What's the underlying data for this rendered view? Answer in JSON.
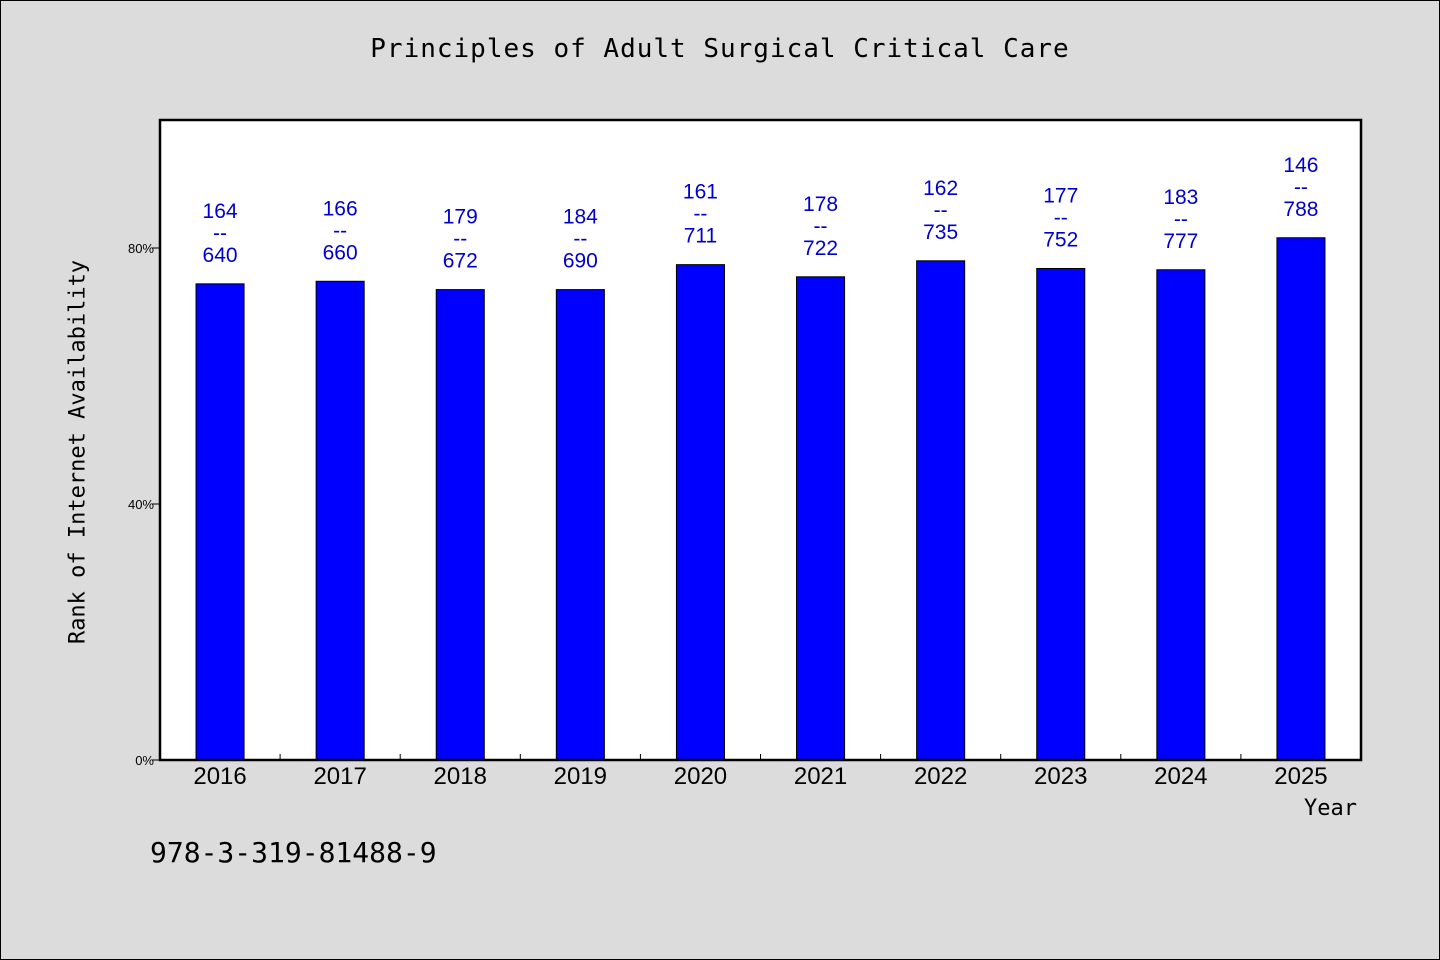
{
  "chart_data": {
    "type": "bar",
    "title": "Principles of Adult Surgical Critical Care",
    "xlabel": "Year",
    "ylabel": "Rank of Internet Availability",
    "categories": [
      "2016",
      "2017",
      "2018",
      "2019",
      "2020",
      "2021",
      "2022",
      "2023",
      "2024",
      "2025"
    ],
    "values": [
      74.4,
      74.8,
      73.5,
      73.5,
      77.4,
      75.5,
      78.0,
      76.8,
      76.6,
      81.6
    ],
    "bar_labels": [
      [
        "164",
        "--",
        "640"
      ],
      [
        "166",
        "--",
        "660"
      ],
      [
        "179",
        "--",
        "672"
      ],
      [
        "184",
        "--",
        "690"
      ],
      [
        "161",
        "--",
        "711"
      ],
      [
        "178",
        "--",
        "722"
      ],
      [
        "162",
        "--",
        "735"
      ],
      [
        "177",
        "--",
        "752"
      ],
      [
        "183",
        "--",
        "777"
      ],
      [
        "146",
        "--",
        "788"
      ]
    ],
    "ylim": [
      0,
      100
    ],
    "yticks": [
      0,
      40,
      80
    ],
    "ytick_labels": [
      "0%",
      "40%",
      "80%"
    ],
    "grid": false,
    "legend": "none",
    "bar_color": "#0000ff",
    "label_color": "#0000cc",
    "plot_background": "#ffffff",
    "page_background": "#dcdcdc"
  },
  "footnote": "978-3-319-81488-9"
}
